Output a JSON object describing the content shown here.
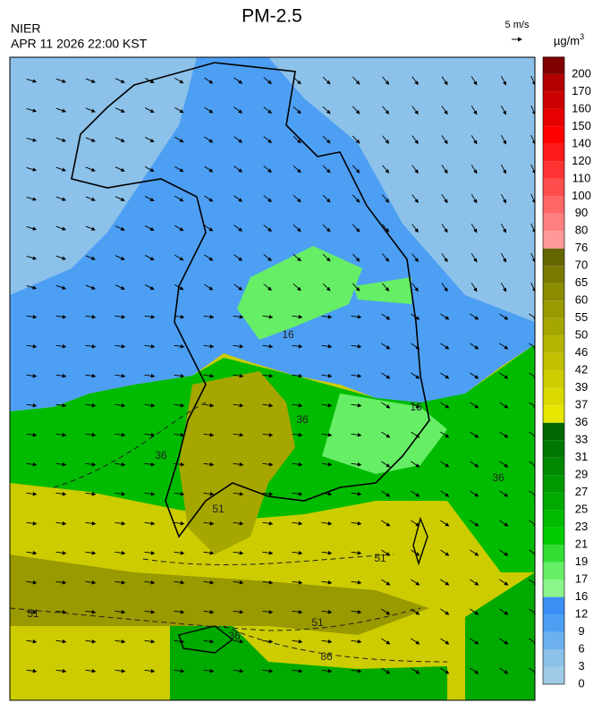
{
  "header": {
    "title": "PM-2.5",
    "org": "NIER",
    "datetime": "APR 11 2026 22:00 KST"
  },
  "wind_legend": {
    "label": "5 m/s"
  },
  "colorbar": {
    "unit": "µg/m",
    "unit_power": "3",
    "levels": [
      0,
      3,
      6,
      9,
      12,
      16,
      17,
      19,
      21,
      23,
      25,
      27,
      29,
      31,
      33,
      36,
      37,
      39,
      42,
      46,
      50,
      55,
      60,
      65,
      70,
      76,
      80,
      90,
      100,
      110,
      120,
      140,
      150,
      160,
      170,
      200
    ],
    "colors": [
      "#9fcbe6",
      "#8cc2ea",
      "#6cb0ef",
      "#4d9ff3",
      "#3b8ff5",
      "#8cf58c",
      "#66ee66",
      "#33dd33",
      "#00cc00",
      "#00bb00",
      "#00aa00",
      "#009900",
      "#008800",
      "#007700",
      "#006600",
      "#e6e600",
      "#d9d900",
      "#cccc00",
      "#c0c000",
      "#b3b300",
      "#a6a600",
      "#999900",
      "#8c8c00",
      "#7a7a00",
      "#666600",
      "#ff9999",
      "#ff8080",
      "#ff6666",
      "#ff4d4d",
      "#ff3333",
      "#ff1a1a",
      "#ff0000",
      "#e60000",
      "#cc0000",
      "#b30000",
      "#800000"
    ]
  },
  "contour_labels": [
    "16",
    "16",
    "36",
    "36",
    "36",
    "36",
    "51",
    "51",
    "51",
    "51",
    "86"
  ]
}
